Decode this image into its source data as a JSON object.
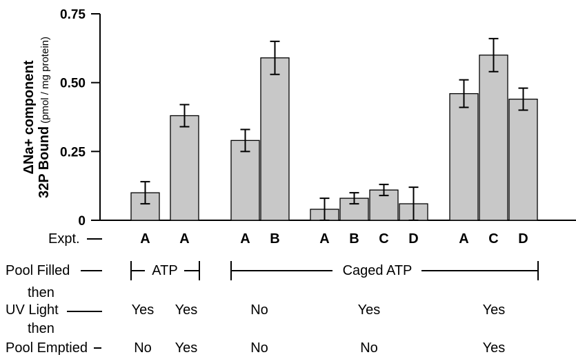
{
  "chart_data": {
    "type": "bar",
    "ylabel_line1": "ΔNa+ component",
    "ylabel_line2_bold": "32P Bound",
    "ylabel_line2_unit": "(pmol / mg protein)",
    "ylim": [
      0,
      0.75
    ],
    "yticks": [
      "0",
      "0.25",
      "0.50",
      "0.75"
    ],
    "ytick_values": [
      0,
      0.25,
      0.5,
      0.75
    ],
    "bar_color": "#c8c8c8",
    "groups": [
      {
        "bars": [
          {
            "label": "A",
            "value": 0.1,
            "err_low": 0.06,
            "err_high": 0.14
          },
          {
            "label": "A",
            "value": 0.38,
            "err_low": 0.34,
            "err_high": 0.42
          }
        ]
      },
      {
        "bars": [
          {
            "label": "A",
            "value": 0.29,
            "err_low": 0.25,
            "err_high": 0.33
          },
          {
            "label": "B",
            "value": 0.59,
            "err_low": 0.53,
            "err_high": 0.65
          }
        ]
      },
      {
        "bars": [
          {
            "label": "A",
            "value": 0.04,
            "err_low": 0.0,
            "err_high": 0.08
          },
          {
            "label": "B",
            "value": 0.08,
            "err_low": 0.06,
            "err_high": 0.1
          },
          {
            "label": "C",
            "value": 0.11,
            "err_low": 0.09,
            "err_high": 0.13
          },
          {
            "label": "D",
            "value": 0.06,
            "err_low": 0.0,
            "err_high": 0.12
          }
        ]
      },
      {
        "bars": [
          {
            "label": "A",
            "value": 0.46,
            "err_low": 0.41,
            "err_high": 0.51
          },
          {
            "label": "C",
            "value": 0.6,
            "err_low": 0.54,
            "err_high": 0.66
          },
          {
            "label": "D",
            "value": 0.44,
            "err_low": 0.4,
            "err_high": 0.48
          }
        ]
      }
    ]
  },
  "table": {
    "expt_label": "Expt.",
    "pool_filled_label": "Pool Filled",
    "then1": "then",
    "uv_light_label": "UV Light",
    "then2": "then",
    "pool_emptied_label": "Pool Emptied",
    "atp_label": "ATP",
    "caged_atp_label": "Caged ATP",
    "uv_values": [
      "Yes",
      "Yes",
      "No",
      "Yes",
      "Yes"
    ],
    "emptied_values": [
      "No",
      "Yes",
      "No",
      "No",
      "Yes"
    ]
  }
}
